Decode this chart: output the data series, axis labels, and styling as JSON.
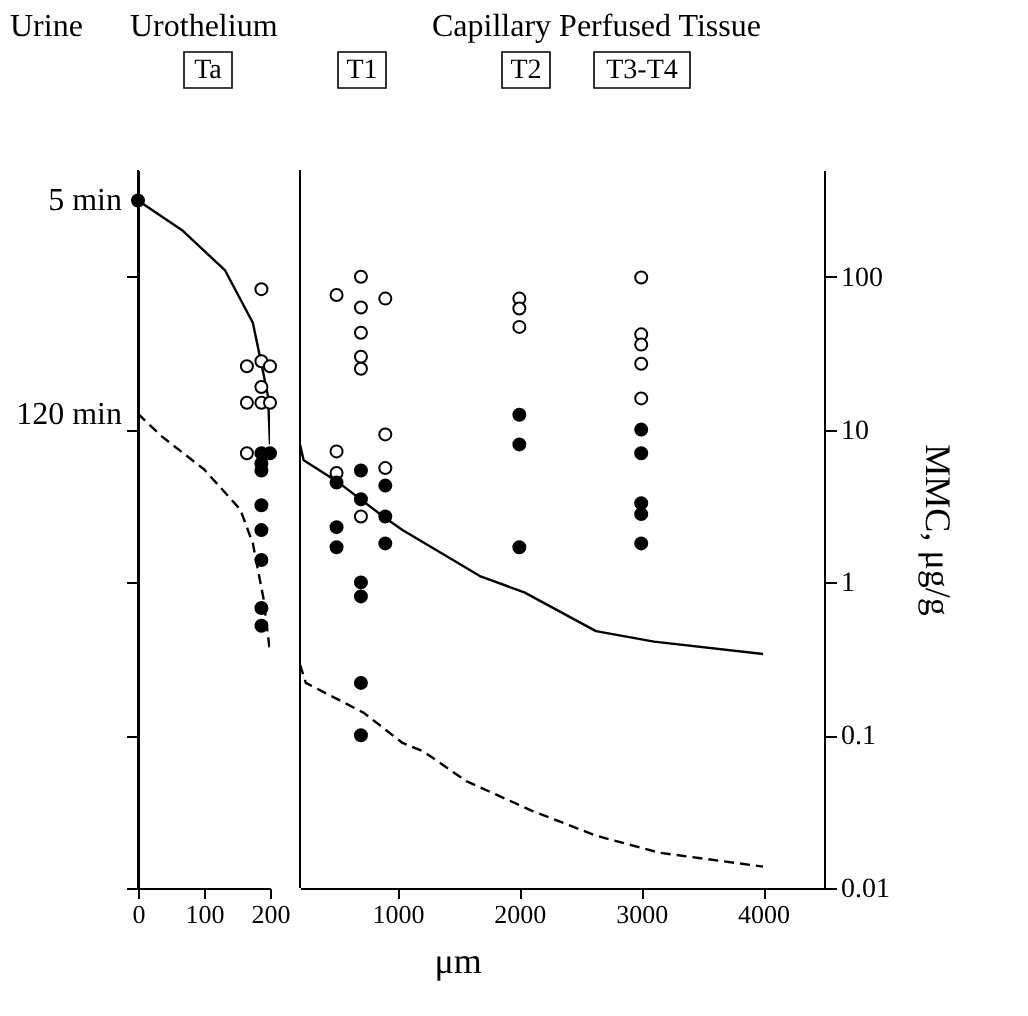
{
  "chart_data": [
    {
      "type": "line",
      "xlim": [
        0,
        200
      ],
      "xticks": [
        0,
        100,
        200
      ],
      "ylim": [
        0.01,
        500
      ],
      "yticks": [
        {
          "value": 0.01,
          "label": null
        },
        {
          "value": 0.1,
          "label": null
        },
        {
          "value": 1,
          "label": null
        },
        {
          "value": 10,
          "label": null
        },
        {
          "value": 100,
          "label": null
        }
      ],
      "log": "y",
      "tick_labels": "x",
      "grid": false,
      "legend": "left",
      "annotations": [
        "Urine",
        "Urothelium",
        "Ta"
      ],
      "series": [
        {
          "name": "5 min",
          "color": "#000000",
          "line_style": "solid",
          "marker": "none",
          "x": [
            0,
            68,
            132,
            174,
            187,
            197,
            200
          ],
          "values": [
            316,
            200,
            110,
            50,
            27,
            16.5,
            8
          ]
        },
        {
          "name": "120 min",
          "color": "#000000",
          "line_style": "dashed",
          "marker": "none",
          "x": [
            0,
            35,
            100,
            155,
            174,
            190,
            200
          ],
          "values": [
            12.7,
            9.1,
            5.5,
            3.0,
            1.8,
            0.79,
            0.35
          ]
        },
        {
          "type": "scatter",
          "color": "#ffffff",
          "marker": "circle",
          "x": [
            187,
            165,
            187,
            200,
            187,
            165,
            187,
            200,
            165
          ],
          "values": [
            83,
            26,
            28,
            26,
            19,
            15,
            15,
            15,
            7
          ]
        },
        {
          "type": "scatter",
          "color": "#000000",
          "marker": "circle",
          "x": [
            0,
            187,
            200,
            187,
            187,
            187,
            187,
            187,
            187,
            187
          ],
          "values": [
            316,
            7,
            7,
            6,
            5.4,
            3.2,
            2.2,
            1.4,
            0.68,
            0.52
          ]
        }
      ]
    },
    {
      "type": "line",
      "xlim": [
        200,
        4500
      ],
      "xticks": [
        1000,
        2000,
        3000,
        4000
      ],
      "ylim": [
        0.01,
        500
      ],
      "yticks": [
        0.01,
        0.1,
        1,
        10,
        100
      ],
      "log": "y",
      "xlabel": "μm",
      "ylabel": "MMC, μg/g",
      "grid": false,
      "annotations": [
        "Capillary Perfused Tissue",
        "T1",
        "T2",
        "T3-T4"
      ],
      "series": [
        {
          "color": "#000000",
          "line_style": "solid",
          "marker": "none",
          "x": [
            200,
            230,
            517,
            883,
            1041,
            1676,
            2041,
            2629,
            3105,
            4000
          ],
          "values": [
            8,
            6.3,
            4.5,
            2.7,
            2.2,
            1.1,
            0.86,
            0.48,
            0.41,
            0.34
          ]
        },
        {
          "color": "#000000",
          "line_style": "dashed",
          "marker": "none",
          "x": [
            200,
            248,
            724,
            1041,
            1216,
            1565,
            2105,
            2629,
            3152,
            4000
          ],
          "values": [
            0.29,
            0.22,
            0.14,
            0.089,
            0.078,
            0.05,
            0.032,
            0.022,
            0.017,
            0.0138
          ]
        },
        {
          "type": "scatter",
          "color": "#ffffff",
          "marker": "circle",
          "x": [
            500,
            700,
            700,
            900,
            700,
            700,
            700,
            900,
            500,
            500,
            900,
            700,
            2000,
            2000,
            2000,
            3000,
            3000,
            3000,
            3000,
            3000
          ],
          "values": [
            76,
            100,
            63,
            72,
            43,
            30,
            25,
            9.3,
            7.2,
            5.2,
            5.6,
            2.7,
            72,
            62,
            47,
            99,
            42,
            36,
            27,
            16
          ]
        },
        {
          "type": "scatter",
          "color": "#000000",
          "marker": "circle",
          "x": [
            700,
            500,
            900,
            700,
            900,
            500,
            500,
            900,
            700,
            700,
            700,
            700,
            2000,
            2000,
            2000,
            3000,
            3000,
            3000,
            3000,
            3000
          ],
          "values": [
            5.4,
            4.5,
            4.3,
            3.5,
            2.7,
            2.3,
            1.7,
            1.8,
            1.0,
            0.81,
            0.22,
            0.1,
            12.5,
            8,
            1.7,
            10,
            7,
            3.3,
            2.8,
            1.8
          ]
        }
      ]
    }
  ]
}
